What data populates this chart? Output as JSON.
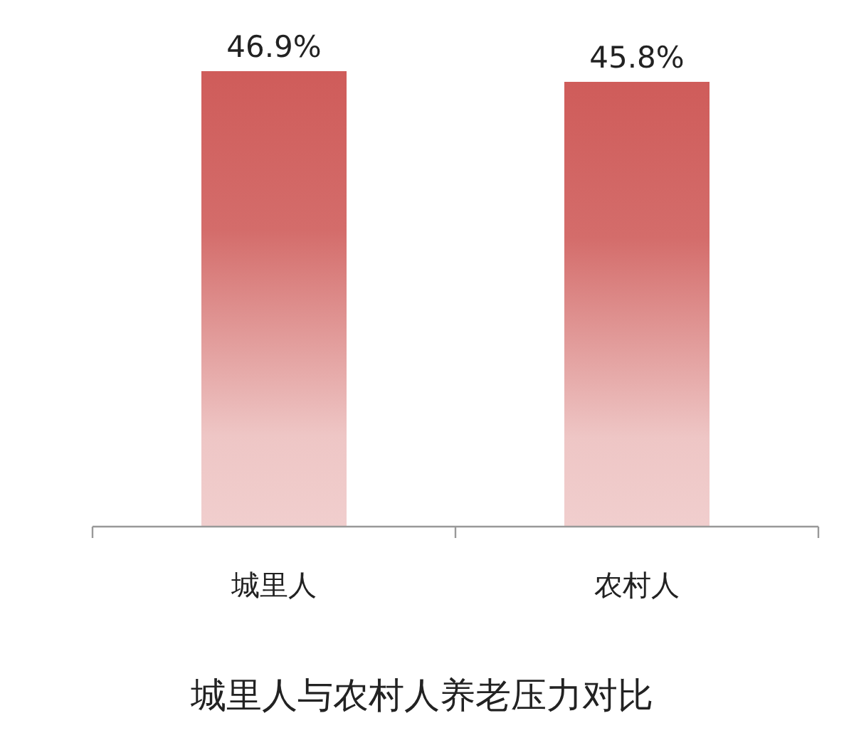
{
  "chart_data": {
    "type": "bar",
    "title": "城里人与农村人养老压力对比",
    "categories": [
      "城里人",
      "农村人"
    ],
    "values": [
      46.9,
      45.8
    ],
    "value_labels": [
      "46.9%",
      "45.8%"
    ],
    "color": "#cf5c5a",
    "tick_labels": "x"
  }
}
